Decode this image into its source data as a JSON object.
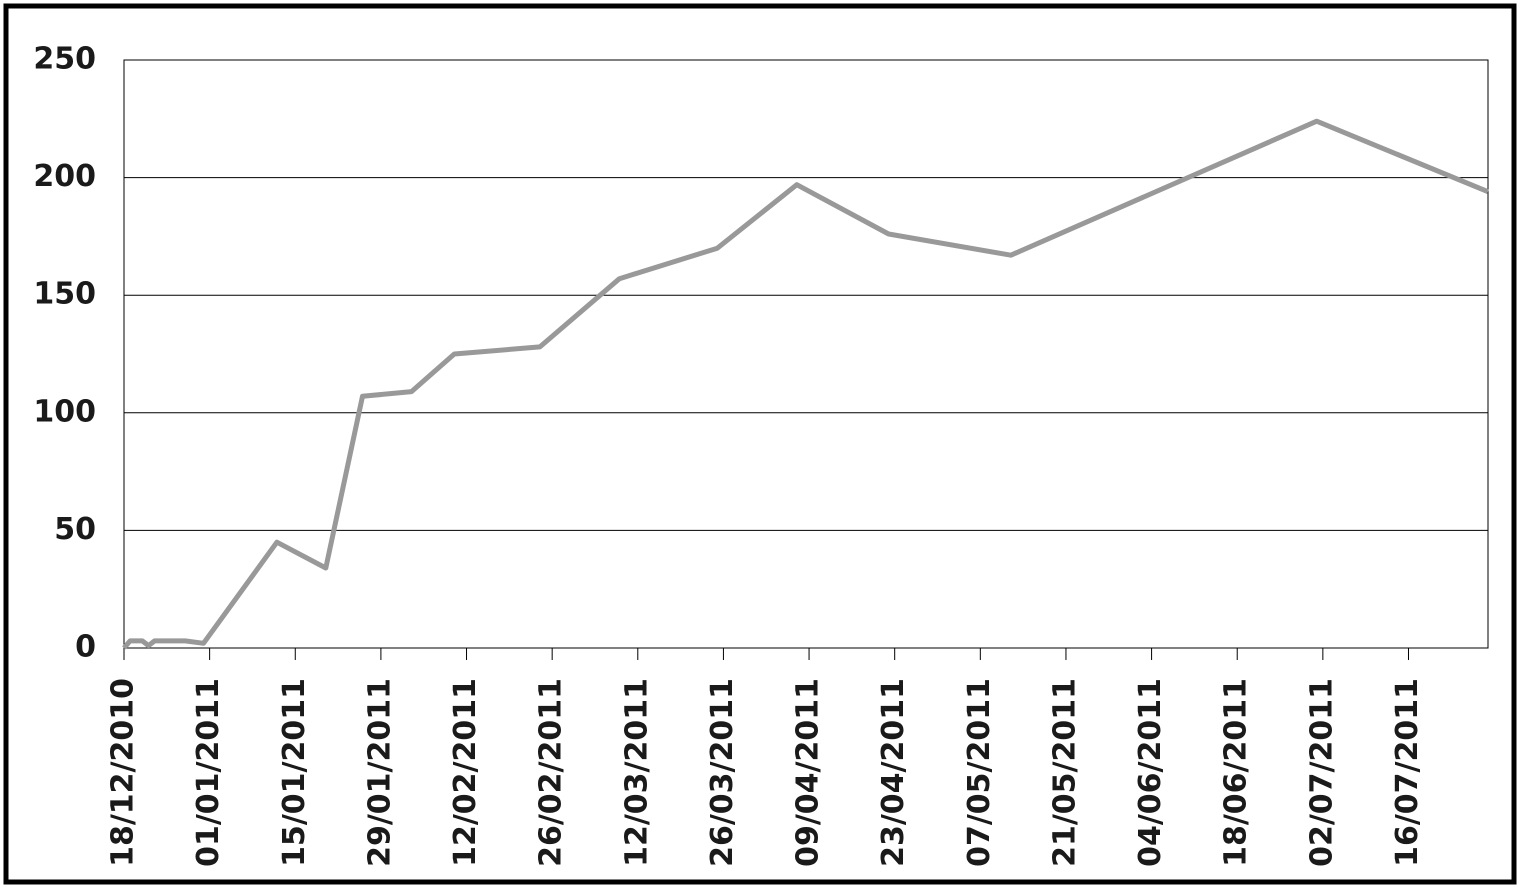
{
  "chart_data": {
    "type": "line",
    "x": [
      "18/12/2010",
      "19/12/2010",
      "21/12/2010",
      "22/12/2010",
      "23/12/2010",
      "28/12/2010",
      "31/12/2010",
      "12/01/2011",
      "20/01/2011",
      "26/01/2011",
      "03/02/2011",
      "10/02/2011",
      "24/02/2011",
      "09/03/2011",
      "25/03/2011",
      "07/04/2011",
      "22/04/2011",
      "12/05/2011",
      "01/07/2011",
      "29/07/2011"
    ],
    "values": [
      0,
      3,
      3,
      1,
      3,
      3,
      2,
      45,
      34,
      107,
      109,
      125,
      128,
      157,
      170,
      197,
      176,
      167,
      224,
      194
    ],
    "color": "#999999",
    "xlim": [
      "18/12/2010",
      "29/07/2011"
    ],
    "xticks": [
      "18/12/2010",
      "01/01/2011",
      "15/01/2011",
      "29/01/2011",
      "12/02/2011",
      "26/02/2011",
      "12/03/2011",
      "26/03/2011",
      "09/04/2011",
      "23/04/2011",
      "07/05/2011",
      "21/05/2011",
      "04/06/2011",
      "18/06/2011",
      "02/07/2011",
      "16/07/2011"
    ],
    "ylim": [
      0,
      250
    ],
    "yticks": [
      0,
      50,
      100,
      150,
      200,
      250
    ],
    "grid": true
  }
}
